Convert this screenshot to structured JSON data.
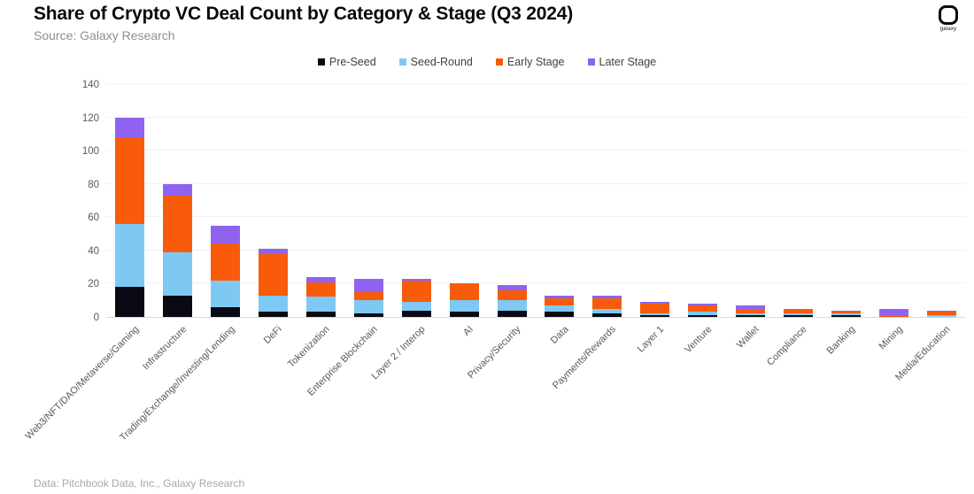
{
  "header": {
    "title": "Share of Crypto VC Deal Count by Category & Stage (Q3 2024)",
    "source": "Source: Galaxy Research",
    "logo_text": "galaxy"
  },
  "footer": {
    "credit": "Data: Pitchbook Data, Inc., Galaxy Research"
  },
  "chart_data": {
    "type": "bar",
    "stacked": true,
    "title": "Share of Crypto VC Deal Count by Category & Stage (Q3 2024)",
    "xlabel": "",
    "ylabel": "",
    "ylim": [
      0,
      140
    ],
    "yticks": [
      0,
      20,
      40,
      60,
      80,
      100,
      120,
      140
    ],
    "grid": true,
    "legend_position": "top",
    "categories": [
      "Web3/NFT/DAO/Metaverse/Gaming",
      "Infrastructure",
      "Trading/Exchange/Investing/Lending",
      "DeFi",
      "Tokenization",
      "Enterprise Blockchain",
      "Layer 2 / Interop",
      "AI",
      "Privacy/Security",
      "Data",
      "Payments/Rewards",
      "Layer 1",
      "Venture",
      "Wallet",
      "Compliance",
      "Banking",
      "Mining",
      "Media/Education"
    ],
    "series": [
      {
        "name": "Pre-Seed",
        "color": "#0a0a14",
        "values": [
          18,
          13,
          6,
          3,
          3,
          2,
          4,
          3,
          4,
          3,
          2,
          1,
          1,
          1,
          1,
          1,
          0,
          0
        ]
      },
      {
        "name": "Seed-Round",
        "color": "#7ec9f4",
        "values": [
          38,
          26,
          16,
          10,
          9,
          8,
          5,
          7,
          6,
          4,
          3,
          1,
          2,
          1,
          1,
          1,
          0,
          1
        ]
      },
      {
        "name": "Early Stage",
        "color": "#f85b0a",
        "values": [
          52,
          34,
          22,
          25,
          9,
          5,
          13,
          10,
          6,
          4,
          6,
          6,
          4,
          3,
          3,
          1,
          1,
          2
        ]
      },
      {
        "name": "Later Stage",
        "color": "#8f63f0",
        "values": [
          12,
          7,
          11,
          3,
          3,
          8,
          1,
          0,
          3,
          2,
          2,
          1,
          1,
          2,
          0,
          1,
          4,
          1
        ]
      }
    ],
    "totals": [
      120,
      80,
      55,
      41,
      24,
      23,
      23,
      20,
      19,
      13,
      13,
      9,
      8,
      7,
      5,
      4,
      5,
      4
    ]
  }
}
